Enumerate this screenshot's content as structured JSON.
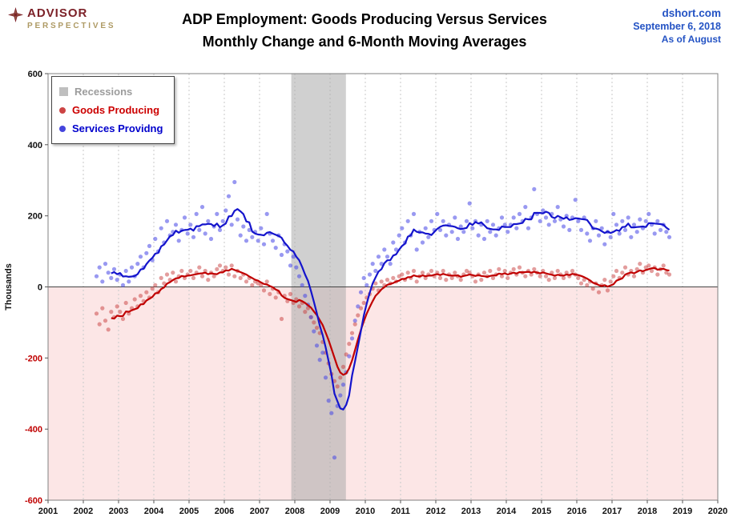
{
  "header": {
    "logo": {
      "line1": "ADVISOR",
      "line2": "PERSPECTIVES"
    },
    "title_line1": "ADP Employment: Goods Producing Versus Services",
    "title_line2": "Monthly Change and 6-Month Moving Averages",
    "source": "dshort.com",
    "date": "September 6, 2018",
    "as_of": "As of August"
  },
  "legend": {
    "items": [
      {
        "label": "Recessions",
        "marker": "square",
        "marker_color": "#BFBFBF",
        "text_color": "#9C9C9C"
      },
      {
        "label": "Goods Producing",
        "marker": "dot",
        "marker_color": "#CC4444",
        "text_color": "#CC0000"
      },
      {
        "label": "Services Providng",
        "marker": "dot",
        "marker_color": "#4545DD",
        "text_color": "#0000CC"
      }
    ]
  },
  "chart_data": {
    "type": "scatter",
    "title": "ADP Employment: Goods Producing Versus Services — Monthly Change and 6-Month Moving Averages",
    "ylabel": "Thousands",
    "x_axis": {
      "min": 2001,
      "max": 2020,
      "tick_years": [
        2001,
        2002,
        2003,
        2004,
        2005,
        2006,
        2007,
        2008,
        2009,
        2010,
        2011,
        2012,
        2013,
        2014,
        2015,
        2016,
        2017,
        2018,
        2019,
        2020
      ]
    },
    "y_axis": {
      "min": -600,
      "max": 600,
      "tick_step": 200,
      "ticks": [
        -600,
        -400,
        -200,
        0,
        200,
        400,
        600
      ]
    },
    "start_year": 2002,
    "start_month": 5,
    "moving_average_window": 6,
    "recessions": [
      {
        "start": 2007.9,
        "end": 2009.45
      }
    ],
    "styles": {
      "negative_fill": "#FCE6E6",
      "recession_fill": "rgba(170,170,170,0.55)",
      "grid_color": "#C9C9C9",
      "zero_line_color": "#444444",
      "border_color": "#808080",
      "pos_tick_color": "#111111",
      "neg_tick_color": "#C00000"
    },
    "series": [
      {
        "name": "Goods Producing",
        "color": "#C00000",
        "point_color": "rgba(200,60,60,0.5)",
        "values": [
          -75,
          -105,
          -60,
          -95,
          -120,
          -70,
          -85,
          -55,
          -70,
          -90,
          -45,
          -75,
          -60,
          -35,
          -55,
          -25,
          -40,
          -15,
          -30,
          -5,
          5,
          -15,
          25,
          10,
          35,
          20,
          40,
          15,
          30,
          45,
          25,
          35,
          45,
          25,
          40,
          55,
          30,
          45,
          20,
          40,
          30,
          50,
          60,
          45,
          55,
          35,
          60,
          30,
          45,
          25,
          35,
          15,
          25,
          5,
          15,
          10,
          5,
          -10,
          15,
          -20,
          -5,
          -30,
          -15,
          -90,
          -25,
          -40,
          -20,
          -45,
          -35,
          -55,
          -45,
          -70,
          -60,
          -85,
          -100,
          -115,
          -130,
          -155,
          -185,
          -215,
          -245,
          -265,
          -280,
          -255,
          -225,
          -190,
          -160,
          -130,
          -105,
          -80,
          -60,
          -45,
          -30,
          -20,
          -5,
          10,
          -10,
          15,
          5,
          20,
          10,
          25,
          15,
          30,
          35,
          20,
          40,
          25,
          45,
          15,
          30,
          40,
          25,
          35,
          45,
          30,
          40,
          25,
          45,
          20,
          35,
          25,
          40,
          30,
          20,
          35,
          45,
          40,
          30,
          15,
          35,
          20,
          40,
          30,
          45,
          25,
          35,
          50,
          30,
          45,
          25,
          40,
          50,
          35,
          55,
          40,
          30,
          45,
          35,
          50,
          40,
          30,
          45,
          30,
          20,
          40,
          25,
          45,
          35,
          25,
          40,
          30,
          45,
          35,
          25,
          10,
          20,
          5,
          15,
          -5,
          10,
          -15,
          5,
          20,
          -10,
          15,
          30,
          45,
          25,
          40,
          55,
          35,
          45,
          30,
          50,
          65,
          40,
          55,
          60,
          45,
          55,
          35,
          50,
          60,
          40,
          35
        ]
      },
      {
        "name": "Services Providng",
        "color": "#1414CC",
        "point_color": "rgba(70,70,230,0.55)",
        "values": [
          30,
          55,
          15,
          65,
          40,
          25,
          50,
          20,
          35,
          5,
          45,
          15,
          55,
          30,
          65,
          85,
          55,
          95,
          115,
          75,
          135,
          100,
          165,
          125,
          185,
          145,
          155,
          175,
          130,
          160,
          195,
          150,
          175,
          140,
          205,
          160,
          225,
          150,
          185,
          135,
          170,
          205,
          160,
          185,
          215,
          255,
          175,
          295,
          190,
          145,
          170,
          130,
          160,
          140,
          155,
          130,
          165,
          120,
          205,
          150,
          130,
          110,
          145,
          90,
          120,
          100,
          60,
          85,
          55,
          30,
          5,
          -25,
          -50,
          -85,
          -125,
          -165,
          -205,
          -185,
          -255,
          -320,
          -355,
          -480,
          -335,
          -305,
          -275,
          -240,
          -195,
          -145,
          -95,
          -55,
          -15,
          25,
          5,
          35,
          65,
          45,
          85,
          65,
          105,
          85,
          65,
          125,
          105,
          145,
          165,
          125,
          185,
          145,
          205,
          105,
          155,
          125,
          165,
          140,
          185,
          160,
          205,
          160,
          185,
          145,
          175,
          155,
          195,
          135,
          170,
          155,
          185,
          235,
          165,
          185,
          145,
          175,
          135,
          185,
          155,
          175,
          145,
          165,
          195,
          175,
          155,
          175,
          195,
          165,
          205,
          185,
          225,
          165,
          195,
          275,
          205,
          185,
          215,
          195,
          175,
          205,
          185,
          225,
          190,
          170,
          200,
          160,
          195,
          245,
          185,
          160,
          195,
          150,
          130,
          165,
          185,
          145,
          165,
          120,
          155,
          140,
          205,
          175,
          150,
          185,
          160,
          195,
          140,
          175,
          155,
          190,
          165,
          185,
          205,
          175,
          150,
          185,
          160,
          175,
          155,
          140
        ]
      }
    ]
  }
}
